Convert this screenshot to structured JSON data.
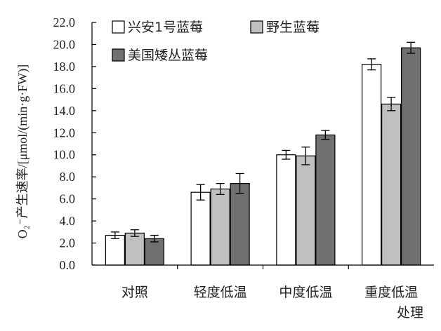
{
  "chart_data": {
    "type": "bar",
    "title": "",
    "xlabel": "处理",
    "ylabel": "O₂⁻产生速率/[μmol/(min·g·FW)]",
    "ylim": [
      0,
      22
    ],
    "ytick_step": 2,
    "ytick_labels": [
      "0.0",
      "2.0",
      "4.0",
      "6.0",
      "8.0",
      "10.0",
      "12.0",
      "14.0",
      "16.0",
      "18.0",
      "20.0",
      "22.0"
    ],
    "categories": [
      "对照",
      "轻度低温",
      "中度低温",
      "重度低温"
    ],
    "series": [
      {
        "name": "兴安1号蓝莓",
        "color": "#ffffff",
        "values": [
          2.7,
          6.6,
          10.0,
          18.2
        ],
        "errors": [
          0.3,
          0.7,
          0.4,
          0.5
        ]
      },
      {
        "name": "野生蓝莓",
        "color": "#c0c0c0",
        "values": [
          2.9,
          6.9,
          9.9,
          14.6
        ],
        "errors": [
          0.3,
          0.5,
          0.8,
          0.6
        ]
      },
      {
        "name": "美国矮丛蓝莓",
        "color": "#707070",
        "values": [
          2.4,
          7.4,
          11.8,
          19.7
        ],
        "errors": [
          0.3,
          0.9,
          0.4,
          0.5
        ]
      }
    ],
    "grid": false,
    "legend_position": "top-left"
  }
}
